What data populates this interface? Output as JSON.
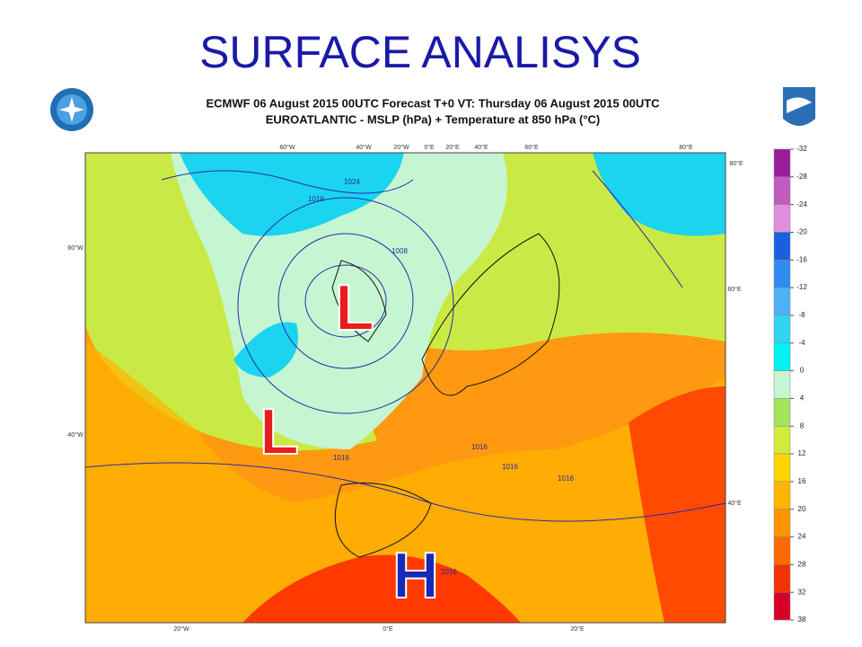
{
  "title": "SURFACE ANALISYS",
  "map": {
    "header": [
      "ECMWF 06 August 2015 00UTC Forecast T+0 VT: Thursday 06 August 2015 00UTC",
      "EUROATLANTIC - MSLP (hPa) + Temperature at 850 hPa (°C)"
    ],
    "top_labels": [
      "60°W",
      "40°W",
      "20°W",
      "0°E",
      "20°E",
      "40°E",
      "60°E",
      "80°E"
    ],
    "bottom_labels": [
      "20°W",
      "0°E",
      "20°E"
    ],
    "left_labels": [
      "60°W",
      "40°W"
    ],
    "right_labels": [
      "80°E",
      "60°E",
      "40°E"
    ],
    "pressure_systems": [
      "L",
      "L",
      "H"
    ],
    "isobar_labels": [
      "1024",
      "1016",
      "1008",
      "1016",
      "1016",
      "1016",
      "1016",
      "1016"
    ]
  },
  "colorbar": {
    "labels": [
      -32,
      -28,
      -24,
      -20,
      -16,
      -12,
      -8,
      -4,
      0,
      4,
      8,
      12,
      16,
      20,
      24,
      28,
      32,
      38
    ],
    "colors": [
      "#9a1e9a",
      "#c05cc0",
      "#e08ee0",
      "#1a5fe0",
      "#2f8cf0",
      "#4fb0f5",
      "#2fd4f2",
      "#00f2f2",
      "#c6f5d2",
      "#a4e35a",
      "#d4ea3a",
      "#ffd400",
      "#ffb400",
      "#ff9400",
      "#ff6a00",
      "#f23300",
      "#d8002a"
    ]
  }
}
